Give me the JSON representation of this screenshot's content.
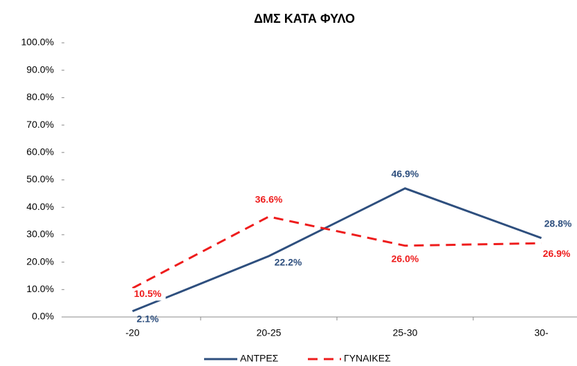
{
  "chart_data": {
    "type": "line",
    "title": "ΔΜΣ ΚΑΤΑ ΦΥΛΟ",
    "categories": [
      "-20",
      "20-25",
      "25-30",
      "30-"
    ],
    "series": [
      {
        "name": "ΑΝΤΡΕΣ",
        "color": "#2e4f7e",
        "dash": false,
        "values": [
          2.1,
          22.2,
          46.9,
          28.8
        ],
        "value_labels": [
          "2.1%",
          "22.2%",
          "46.9%",
          "28.8%"
        ]
      },
      {
        "name": "ΓΥΝΑΙΚΕΣ",
        "color": "#ee1c1c",
        "dash": true,
        "values": [
          10.5,
          36.6,
          26.0,
          26.9
        ],
        "value_labels": [
          "10.5%",
          "36.6%",
          "26.0%",
          "26.9%"
        ]
      }
    ],
    "ylim": [
      0,
      100
    ],
    "yticks": [
      {
        "value": 0,
        "label": "0.0%"
      },
      {
        "value": 10,
        "label": "10.0%"
      },
      {
        "value": 20,
        "label": "20.0%"
      },
      {
        "value": 30,
        "label": "30.0%"
      },
      {
        "value": 40,
        "label": "40.0%"
      },
      {
        "value": 50,
        "label": "50.0%"
      },
      {
        "value": 60,
        "label": "60.0%"
      },
      {
        "value": 70,
        "label": "70.0%"
      },
      {
        "value": 80,
        "label": "80.0%"
      },
      {
        "value": 90,
        "label": "90.0%"
      },
      {
        "value": 100,
        "label": "100.0%"
      }
    ],
    "grid": false,
    "legend": "bottom"
  }
}
